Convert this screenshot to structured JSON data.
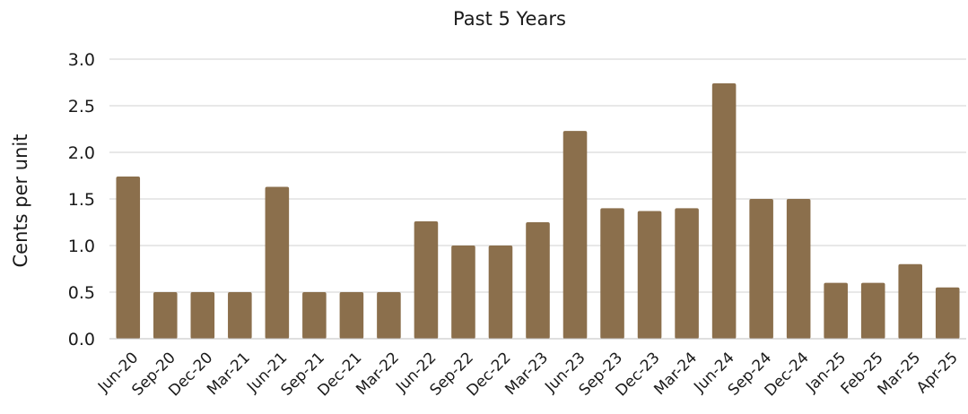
{
  "chart_data": {
    "type": "bar",
    "title": "Past 5 Years",
    "xlabel": "",
    "ylabel": "Cents per unit",
    "ylim": [
      0,
      3.0
    ],
    "yticks": [
      "0.0",
      "0.5",
      "1.0",
      "1.5",
      "2.0",
      "2.5",
      "3.0"
    ],
    "grid": true,
    "bar_color": "#8B6F4C",
    "categories": [
      "Jun-20",
      "Sep-20",
      "Dec-20",
      "Mar-21",
      "Jun-21",
      "Sep-21",
      "Dec-21",
      "Mar-22",
      "Jun-22",
      "Sep-22",
      "Dec-22",
      "Mar-23",
      "Jun-23",
      "Sep-23",
      "Dec-23",
      "Mar-24",
      "Jun-24",
      "Sep-24",
      "Dec-24",
      "Jan-25",
      "Feb-25",
      "Mar-25",
      "Apr-25"
    ],
    "values": [
      1.74,
      0.5,
      0.5,
      0.5,
      1.63,
      0.5,
      0.5,
      0.5,
      1.26,
      1.0,
      1.0,
      1.25,
      2.23,
      1.4,
      1.37,
      1.4,
      2.74,
      1.5,
      1.5,
      0.6,
      0.6,
      0.8,
      0.55
    ]
  }
}
